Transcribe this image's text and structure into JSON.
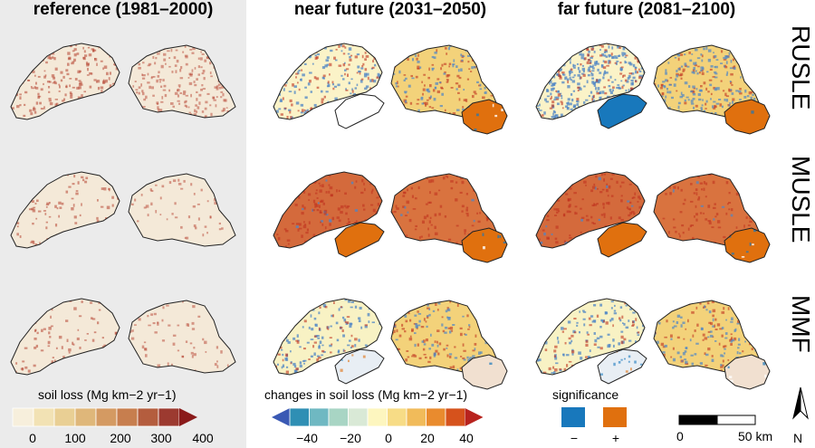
{
  "columns": [
    {
      "title": "reference (1981–2000)"
    },
    {
      "title": "near future (2031–2050)"
    },
    {
      "title": "far future (2081–2100)"
    }
  ],
  "rows": [
    {
      "label": "RUSLE"
    },
    {
      "label": "MUSLE"
    },
    {
      "label": "MMF"
    }
  ],
  "legend_soil_loss": {
    "title": "soil loss (Mg km−2 yr−1)",
    "ticks": [
      "0",
      "100",
      "200",
      "300",
      "400"
    ],
    "colors": [
      "#f7efdc",
      "#f2e2b4",
      "#e9cf94",
      "#dfb77a",
      "#d49a62",
      "#c77e4e",
      "#b45d3e",
      "#9c3a30",
      "#8a1a1a"
    ]
  },
  "legend_changes": {
    "title": "changes in soil loss (Mg km−2 yr−1)",
    "ticks": [
      "−40",
      "−20",
      "0",
      "20",
      "40"
    ],
    "colors": [
      "#3a59b4",
      "#2f8fb4",
      "#6fb8c2",
      "#a8d5c4",
      "#d9e9d6",
      "#fdf6bf",
      "#f7dc86",
      "#f1bb5a",
      "#e98b2e",
      "#d6521c",
      "#b8231e"
    ]
  },
  "legend_significance": {
    "title": "significance",
    "items": [
      {
        "symbol": "−",
        "color": "#1878bc"
      },
      {
        "symbol": "+",
        "color": "#e0700e"
      }
    ]
  },
  "scalebar": {
    "start_label": "0",
    "end_label": "50 km",
    "north_label": "N"
  },
  "colors": {
    "reference_bg": "#ebebeb",
    "reference_map": "#f4e9d8",
    "reference_speckle": "#b5412f",
    "rusle_near": "#fbf3c8",
    "musle_near": "#d46a3c",
    "mmf_near": "#f8f2c4",
    "blue_change": "#4f86c6",
    "red_change": "#c0321e",
    "sig_neg": "#1878bc",
    "sig_pos": "#e0700e"
  }
}
